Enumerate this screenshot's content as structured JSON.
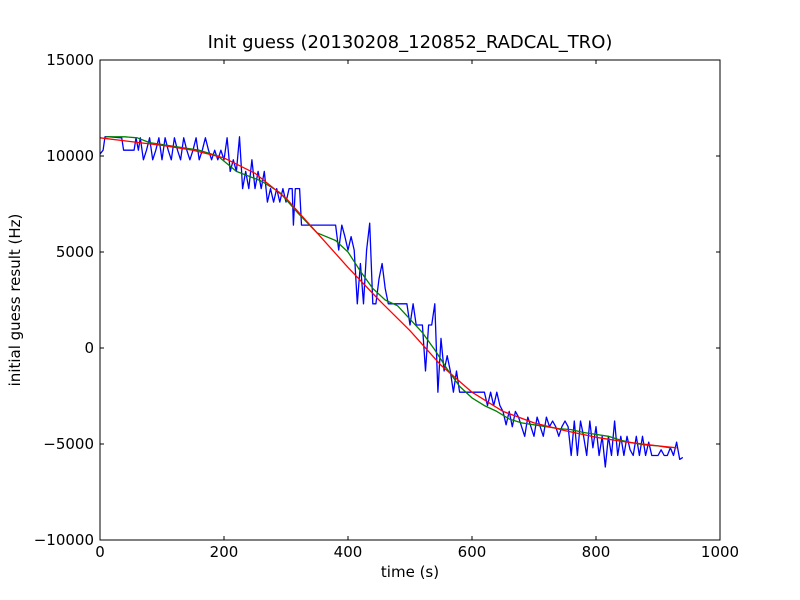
{
  "chart_data": {
    "type": "line",
    "title": "Init guess (20130208_120852_RADCAL_TRO)",
    "xlabel": "time (s)",
    "ylabel": "initial guess result (Hz)",
    "xlim": [
      0,
      1000
    ],
    "ylim": [
      -10000,
      15000
    ],
    "x_ticks": [
      "0",
      "200",
      "400",
      "600",
      "800",
      "1000"
    ],
    "y_ticks": [
      "−10000",
      "−5000",
      "0",
      "5000",
      "10000",
      "15000"
    ],
    "grid": false,
    "legend": "none",
    "series": [
      {
        "color": "#0000ff",
        "points": [
          [
            0,
            10100
          ],
          [
            5,
            10300
          ],
          [
            8,
            11000
          ],
          [
            15,
            11000
          ],
          [
            35,
            10950
          ],
          [
            38,
            10300
          ],
          [
            55,
            10300
          ],
          [
            58,
            10950
          ],
          [
            62,
            10300
          ],
          [
            65,
            10950
          ],
          [
            70,
            9800
          ],
          [
            75,
            10300
          ],
          [
            80,
            10950
          ],
          [
            85,
            9800
          ],
          [
            90,
            10300
          ],
          [
            95,
            10950
          ],
          [
            100,
            9800
          ],
          [
            105,
            10950
          ],
          [
            110,
            10300
          ],
          [
            115,
            9800
          ],
          [
            120,
            10950
          ],
          [
            125,
            10300
          ],
          [
            130,
            9800
          ],
          [
            135,
            10950
          ],
          [
            140,
            10300
          ],
          [
            145,
            9800
          ],
          [
            150,
            10300
          ],
          [
            155,
            10950
          ],
          [
            160,
            9800
          ],
          [
            165,
            10300
          ],
          [
            170,
            10950
          ],
          [
            175,
            10300
          ],
          [
            180,
            9800
          ],
          [
            185,
            10300
          ],
          [
            190,
            9800
          ],
          [
            195,
            10300
          ],
          [
            200,
            9800
          ],
          [
            205,
            10950
          ],
          [
            210,
            9200
          ],
          [
            215,
            9800
          ],
          [
            220,
            9200
          ],
          [
            225,
            11000
          ],
          [
            230,
            8300
          ],
          [
            235,
            9200
          ],
          [
            240,
            8300
          ],
          [
            245,
            9800
          ],
          [
            250,
            8300
          ],
          [
            255,
            9200
          ],
          [
            260,
            8300
          ],
          [
            265,
            9200
          ],
          [
            270,
            7600
          ],
          [
            275,
            8300
          ],
          [
            280,
            7600
          ],
          [
            285,
            8300
          ],
          [
            290,
            7600
          ],
          [
            295,
            8300
          ],
          [
            300,
            7600
          ],
          [
            305,
            8300
          ],
          [
            310,
            8300
          ],
          [
            312,
            6400
          ],
          [
            315,
            8300
          ],
          [
            318,
            8300
          ],
          [
            322,
            8300
          ],
          [
            325,
            6400
          ],
          [
            330,
            6400
          ],
          [
            380,
            6400
          ],
          [
            385,
            5100
          ],
          [
            390,
            6400
          ],
          [
            395,
            5800
          ],
          [
            400,
            5100
          ],
          [
            405,
            5800
          ],
          [
            410,
            5100
          ],
          [
            415,
            2300
          ],
          [
            420,
            4400
          ],
          [
            425,
            2300
          ],
          [
            430,
            5100
          ],
          [
            435,
            6500
          ],
          [
            440,
            2300
          ],
          [
            445,
            2300
          ],
          [
            450,
            3600
          ],
          [
            455,
            4400
          ],
          [
            460,
            3100
          ],
          [
            465,
            2300
          ],
          [
            475,
            2300
          ],
          [
            480,
            2300
          ],
          [
            485,
            2300
          ],
          [
            490,
            2300
          ],
          [
            495,
            2300
          ],
          [
            500,
            1200
          ],
          [
            505,
            2300
          ],
          [
            510,
            1200
          ],
          [
            515,
            1200
          ],
          [
            520,
            1200
          ],
          [
            525,
            -1200
          ],
          [
            530,
            1200
          ],
          [
            535,
            1200
          ],
          [
            540,
            2300
          ],
          [
            545,
            -2300
          ],
          [
            550,
            500
          ],
          [
            555,
            -1200
          ],
          [
            560,
            -400
          ],
          [
            565,
            -1200
          ],
          [
            570,
            -2300
          ],
          [
            575,
            -1200
          ],
          [
            580,
            -2300
          ],
          [
            620,
            -2300
          ],
          [
            625,
            -3000
          ],
          [
            630,
            -2300
          ],
          [
            635,
            -3000
          ],
          [
            640,
            -2300
          ],
          [
            645,
            -3000
          ],
          [
            650,
            -3300
          ],
          [
            655,
            -4000
          ],
          [
            660,
            -3300
          ],
          [
            665,
            -4100
          ],
          [
            670,
            -3300
          ],
          [
            675,
            -3600
          ],
          [
            680,
            -4100
          ],
          [
            685,
            -4600
          ],
          [
            690,
            -3600
          ],
          [
            695,
            -4100
          ],
          [
            700,
            -4600
          ],
          [
            705,
            -3600
          ],
          [
            710,
            -4100
          ],
          [
            715,
            -4600
          ],
          [
            720,
            -3600
          ],
          [
            725,
            -4100
          ],
          [
            730,
            -3800
          ],
          [
            735,
            -4100
          ],
          [
            740,
            -4600
          ],
          [
            745,
            -4100
          ],
          [
            750,
            -3800
          ],
          [
            755,
            -4100
          ],
          [
            760,
            -5600
          ],
          [
            765,
            -3800
          ],
          [
            770,
            -5600
          ],
          [
            775,
            -3800
          ],
          [
            780,
            -4600
          ],
          [
            785,
            -5600
          ],
          [
            790,
            -3800
          ],
          [
            795,
            -5200
          ],
          [
            800,
            -4100
          ],
          [
            805,
            -5600
          ],
          [
            810,
            -4600
          ],
          [
            815,
            -6200
          ],
          [
            820,
            -4600
          ],
          [
            825,
            -5600
          ],
          [
            830,
            -3800
          ],
          [
            835,
            -5600
          ],
          [
            840,
            -4600
          ],
          [
            845,
            -5600
          ],
          [
            850,
            -4600
          ],
          [
            855,
            -5300
          ],
          [
            860,
            -5600
          ],
          [
            865,
            -4600
          ],
          [
            870,
            -5600
          ],
          [
            875,
            -4600
          ],
          [
            880,
            -5600
          ],
          [
            885,
            -4900
          ],
          [
            890,
            -5600
          ],
          [
            895,
            -5600
          ],
          [
            900,
            -5600
          ],
          [
            905,
            -5300
          ],
          [
            910,
            -5600
          ],
          [
            915,
            -5600
          ],
          [
            920,
            -5200
          ],
          [
            925,
            -5600
          ],
          [
            930,
            -4900
          ],
          [
            935,
            -5800
          ],
          [
            940,
            -5700
          ]
        ]
      },
      {
        "color": "#008000",
        "points": [
          [
            10,
            11000
          ],
          [
            40,
            11000
          ],
          [
            60,
            10950
          ],
          [
            80,
            10700
          ],
          [
            100,
            10600
          ],
          [
            130,
            10450
          ],
          [
            160,
            10300
          ],
          [
            190,
            10000
          ],
          [
            220,
            9200
          ],
          [
            260,
            8700
          ],
          [
            290,
            8100
          ],
          [
            320,
            7000
          ],
          [
            350,
            6000
          ],
          [
            380,
            5600
          ],
          [
            400,
            5000
          ],
          [
            420,
            4000
          ],
          [
            440,
            3100
          ],
          [
            460,
            2500
          ],
          [
            480,
            2200
          ],
          [
            500,
            1500
          ],
          [
            520,
            800
          ],
          [
            540,
            -100
          ],
          [
            560,
            -1100
          ],
          [
            580,
            -2000
          ],
          [
            600,
            -2600
          ],
          [
            620,
            -3000
          ],
          [
            640,
            -3300
          ],
          [
            660,
            -3700
          ],
          [
            680,
            -3900
          ],
          [
            700,
            -4000
          ],
          [
            720,
            -4100
          ],
          [
            740,
            -4200
          ],
          [
            760,
            -4250
          ],
          [
            780,
            -4400
          ],
          [
            800,
            -4500
          ],
          [
            820,
            -4600
          ],
          [
            840,
            -4800
          ],
          [
            860,
            -4950
          ],
          [
            880,
            -5050
          ],
          [
            900,
            -5100
          ],
          [
            920,
            -5200
          ]
        ]
      },
      {
        "color": "#ff0000",
        "points": [
          [
            0,
            10950
          ],
          [
            50,
            10750
          ],
          [
            100,
            10550
          ],
          [
            150,
            10300
          ],
          [
            200,
            9900
          ],
          [
            250,
            9100
          ],
          [
            300,
            7800
          ],
          [
            350,
            6000
          ],
          [
            400,
            4200
          ],
          [
            450,
            2500
          ],
          [
            500,
            900
          ],
          [
            550,
            -900
          ],
          [
            600,
            -2300
          ],
          [
            650,
            -3300
          ],
          [
            700,
            -3900
          ],
          [
            750,
            -4300
          ],
          [
            800,
            -4650
          ],
          [
            850,
            -4900
          ],
          [
            900,
            -5100
          ],
          [
            930,
            -5200
          ]
        ]
      }
    ]
  }
}
